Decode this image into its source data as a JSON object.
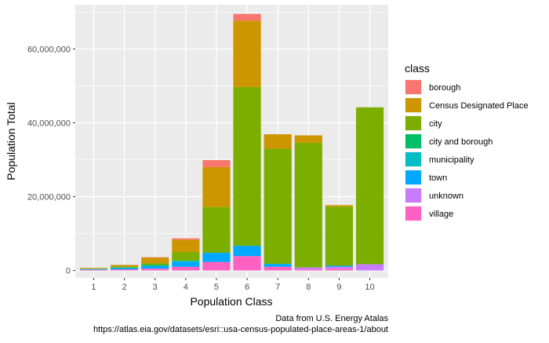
{
  "chart_data": {
    "type": "bar",
    "stacked": true,
    "xlabel": "Population Class",
    "ylabel": "Population Total",
    "categories": [
      "1",
      "2",
      "3",
      "4",
      "5",
      "6",
      "7",
      "8",
      "9",
      "10"
    ],
    "ylim": [
      -2000000,
      72000000
    ],
    "yticks": [
      0,
      20000000,
      40000000,
      60000000
    ],
    "ytick_labels": [
      "0",
      "20,000,000",
      "40,000,000",
      "60,000,000"
    ],
    "grid": true,
    "legend_title": "class",
    "legend_position": "right",
    "series": [
      {
        "name": "village",
        "color": "#FF61C3",
        "values": [
          200000,
          300000,
          500000,
          1000000,
          2300000,
          3900000,
          1000000,
          300000,
          500000,
          0
        ]
      },
      {
        "name": "unknown",
        "color": "#C77CFF",
        "values": [
          0,
          0,
          0,
          0,
          0,
          0,
          0,
          500000,
          500000,
          1700000
        ]
      },
      {
        "name": "town",
        "color": "#00A9FF",
        "values": [
          200000,
          400000,
          700000,
          1400000,
          2500000,
          2800000,
          800000,
          0,
          300000,
          0
        ]
      },
      {
        "name": "municipality",
        "color": "#00BFC4",
        "values": [
          0,
          0,
          100000,
          100000,
          0,
          0,
          0,
          0,
          0,
          0
        ]
      },
      {
        "name": "city and borough",
        "color": "#00BE67",
        "values": [
          0,
          100000,
          200000,
          200000,
          0,
          0,
          0,
          0,
          0,
          0
        ]
      },
      {
        "name": "city",
        "color": "#7CAE00",
        "values": [
          100000,
          300000,
          500000,
          2300000,
          12400000,
          43000000,
          31200000,
          33800000,
          16000000,
          42500000
        ]
      },
      {
        "name": "Census Designated Place",
        "color": "#CD9600",
        "values": [
          200000,
          400000,
          1500000,
          3300000,
          10800000,
          18000000,
          3900000,
          2000000,
          400000,
          0
        ]
      },
      {
        "name": "borough",
        "color": "#F8766D",
        "values": [
          0,
          0,
          100000,
          400000,
          1900000,
          1800000,
          0,
          0,
          0,
          0
        ]
      }
    ],
    "legend_order": [
      "borough",
      "Census Designated Place",
      "city",
      "city and borough",
      "municipality",
      "town",
      "unknown",
      "village"
    ],
    "caption_lines": [
      "Data from U.S. Energy Atalas",
      "https://atlas.eia.gov/datasets/esri::usa-census-populated-place-areas-1/about"
    ]
  }
}
